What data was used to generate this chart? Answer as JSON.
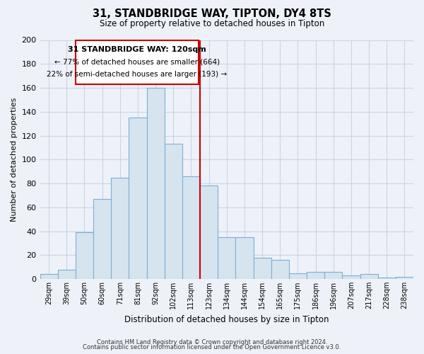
{
  "title": "31, STANDBRIDGE WAY, TIPTON, DY4 8TS",
  "subtitle": "Size of property relative to detached houses in Tipton",
  "xlabel": "Distribution of detached houses by size in Tipton",
  "ylabel": "Number of detached properties",
  "bar_labels": [
    "29sqm",
    "39sqm",
    "50sqm",
    "60sqm",
    "71sqm",
    "81sqm",
    "92sqm",
    "102sqm",
    "113sqm",
    "123sqm",
    "134sqm",
    "144sqm",
    "154sqm",
    "165sqm",
    "175sqm",
    "186sqm",
    "196sqm",
    "207sqm",
    "217sqm",
    "228sqm",
    "238sqm"
  ],
  "bar_values": [
    4,
    8,
    39,
    67,
    85,
    135,
    160,
    113,
    86,
    78,
    35,
    35,
    18,
    16,
    5,
    6,
    6,
    3,
    4,
    1,
    2
  ],
  "bar_color": "#d6e4f0",
  "bar_edge_color": "#7bafd4",
  "property_line_label": "31 STANDBRIDGE WAY: 120sqm",
  "annotation_line1": "← 77% of detached houses are smaller (664)",
  "annotation_line2": "22% of semi-detached houses are larger (193) →",
  "box_edge_color": "#cc0000",
  "ylim": [
    0,
    200
  ],
  "yticks": [
    0,
    20,
    40,
    60,
    80,
    100,
    120,
    140,
    160,
    180,
    200
  ],
  "footer1": "Contains HM Land Registry data © Crown copyright and database right 2024.",
  "footer2": "Contains public sector information licensed under the Open Government Licence v3.0.",
  "plot_bg_color": "#eef2f8",
  "fig_bg_color": "#eef2f8",
  "grid_color": "#c8d4e8"
}
